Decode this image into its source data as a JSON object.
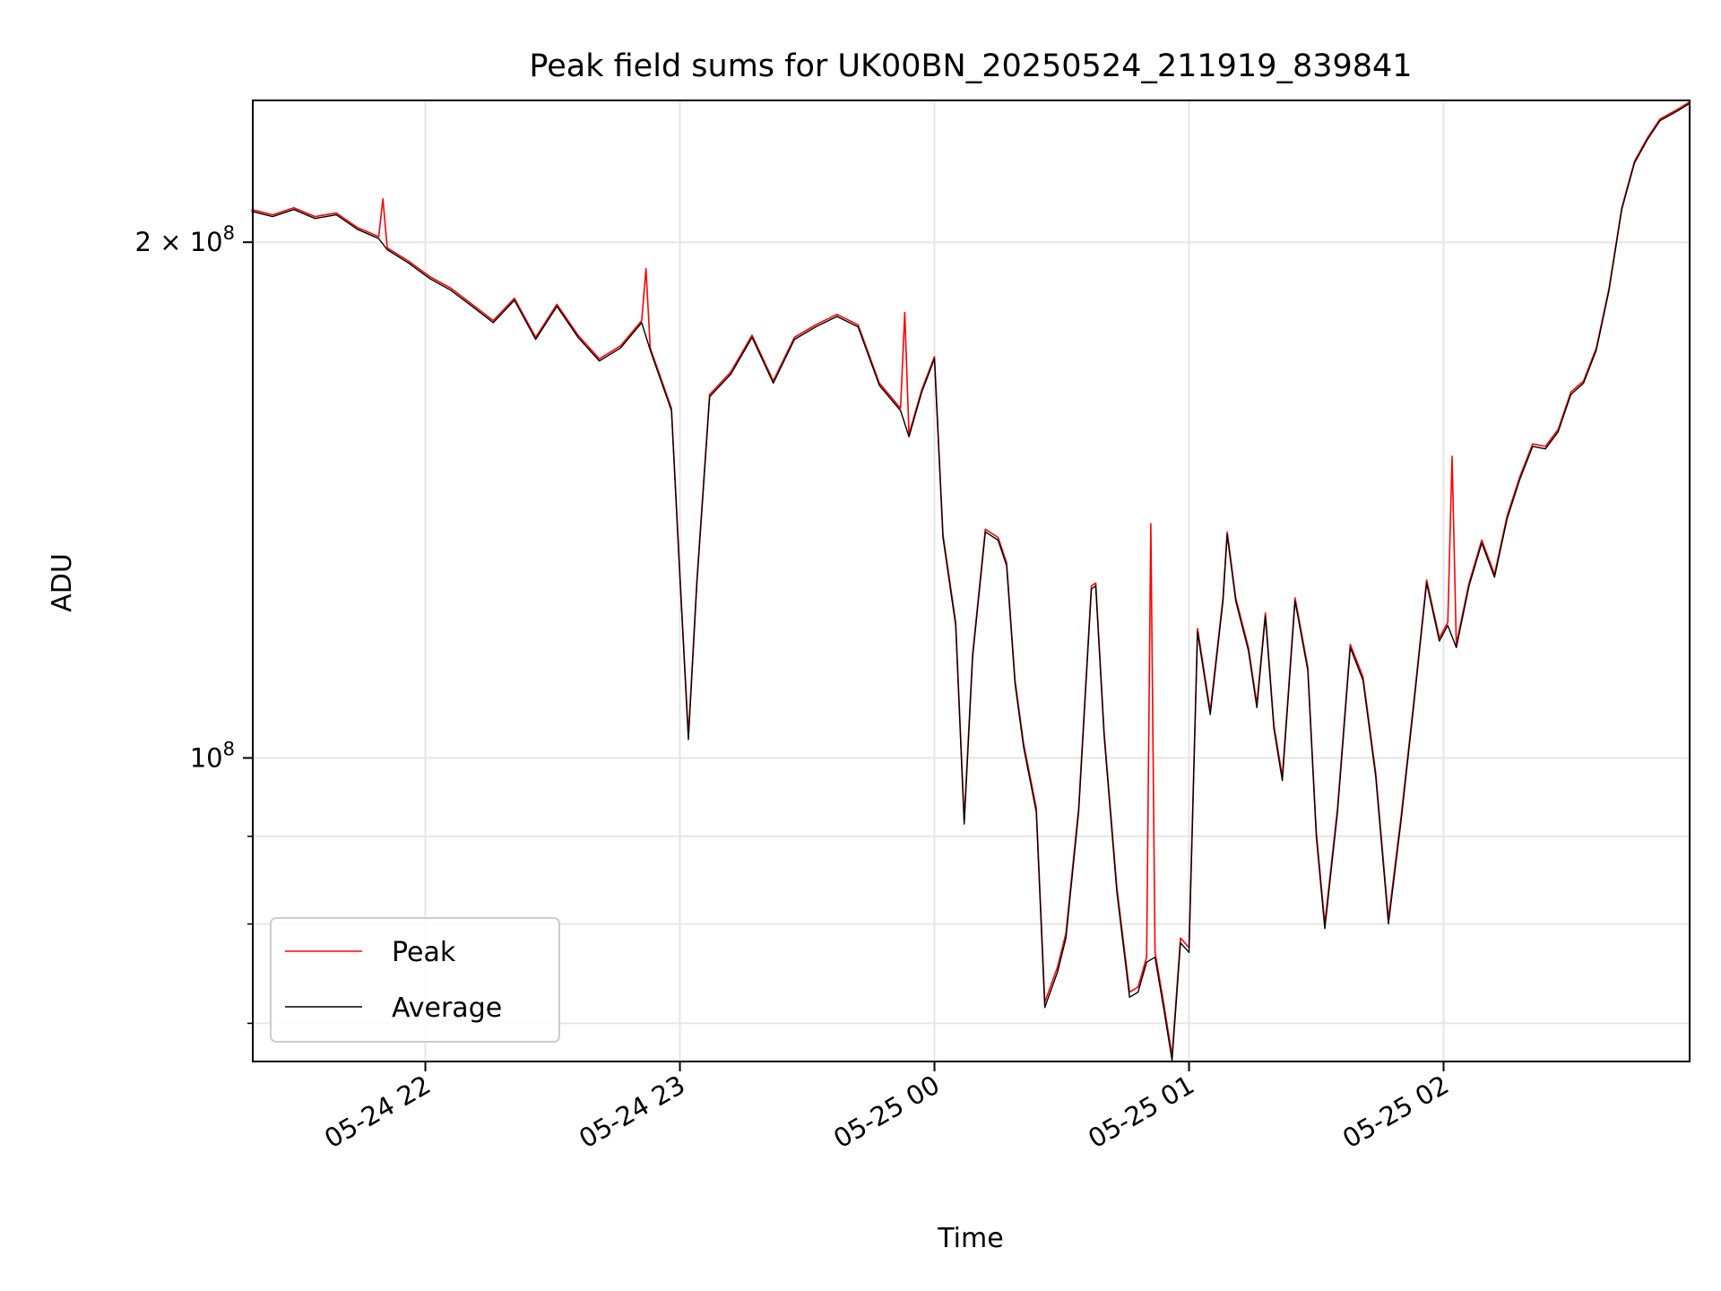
{
  "chart_data": {
    "type": "line",
    "title": "Peak field sums for UK00BN_20250524_211919_839841",
    "xlabel": "Time",
    "ylabel": "ADU",
    "x_range": [
      "2025-05-24T21:19:19",
      "2025-05-25T02:58:00"
    ],
    "x_ticks": [
      {
        "value": "2025-05-24T22:00",
        "label": "05-24 22"
      },
      {
        "value": "2025-05-24T23:00",
        "label": "05-24 23"
      },
      {
        "value": "2025-05-25T00:00",
        "label": "05-25 00"
      },
      {
        "value": "2025-05-25T01:00",
        "label": "05-25 01"
      },
      {
        "value": "2025-05-25T02:00",
        "label": "05-25 02"
      }
    ],
    "y_scale": "log",
    "ylim": [
      66500000,
      242000000
    ],
    "y_ticks": [
      {
        "value": 100000000,
        "label_base": "10",
        "label_exp": "8",
        "label_mult": ""
      },
      {
        "value": 200000000,
        "label_base": "10",
        "label_exp": "8",
        "label_mult": "2 × "
      }
    ],
    "y_minor_ticks": [
      70000000,
      80000000,
      90000000
    ],
    "grid": true,
    "legend_position": "lower-left",
    "series": [
      {
        "name": "Peak",
        "color": "#ff0000",
        "points": [
          [
            "2025-05-24T21:19",
            209000000
          ],
          [
            "2025-05-24T21:24",
            207500000
          ],
          [
            "2025-05-24T21:29",
            209500000
          ],
          [
            "2025-05-24T21:34",
            207000000
          ],
          [
            "2025-05-24T21:39",
            208000000
          ],
          [
            "2025-05-24T21:44",
            204000000
          ],
          [
            "2025-05-24T21:49",
            201500000
          ],
          [
            "2025-05-24T21:50",
            212000000
          ],
          [
            "2025-05-24T21:51",
            198500000
          ],
          [
            "2025-05-24T21:56",
            195000000
          ],
          [
            "2025-05-24T22:01",
            191000000
          ],
          [
            "2025-05-24T22:06",
            188000000
          ],
          [
            "2025-05-24T22:11",
            184000000
          ],
          [
            "2025-05-24T22:16",
            180000000
          ],
          [
            "2025-05-24T22:21",
            185500000
          ],
          [
            "2025-05-24T22:26",
            176000000
          ],
          [
            "2025-05-24T22:31",
            184000000
          ],
          [
            "2025-05-24T22:36",
            176500000
          ],
          [
            "2025-05-24T22:41",
            171000000
          ],
          [
            "2025-05-24T22:46",
            174000000
          ],
          [
            "2025-05-24T22:51",
            180000000
          ],
          [
            "2025-05-24T22:52",
            193000000
          ],
          [
            "2025-05-24T22:53",
            173500000
          ],
          [
            "2025-05-24T22:58",
            160000000
          ],
          [
            "2025-05-24T23:00",
            128000000
          ],
          [
            "2025-05-24T23:02",
            103000000
          ],
          [
            "2025-05-24T23:04",
            127000000
          ],
          [
            "2025-05-24T23:07",
            163000000
          ],
          [
            "2025-05-24T23:12",
            168000000
          ],
          [
            "2025-05-24T23:17",
            176500000
          ],
          [
            "2025-05-24T23:22",
            166000000
          ],
          [
            "2025-05-24T23:27",
            176000000
          ],
          [
            "2025-05-24T23:32",
            179000000
          ],
          [
            "2025-05-24T23:37",
            181500000
          ],
          [
            "2025-05-24T23:42",
            179000000
          ],
          [
            "2025-05-24T23:47",
            165500000
          ],
          [
            "2025-05-24T23:52",
            160000000
          ],
          [
            "2025-05-24T23:53",
            182000000
          ],
          [
            "2025-05-24T23:54",
            154500000
          ],
          [
            "2025-05-24T23:57",
            164000000
          ],
          [
            "2025-05-25T00:00",
            171500000
          ],
          [
            "2025-05-25T00:02",
            135000000
          ],
          [
            "2025-05-25T00:05",
            120000000
          ],
          [
            "2025-05-25T00:07",
            92000000
          ],
          [
            "2025-05-25T00:09",
            115000000
          ],
          [
            "2025-05-25T00:12",
            136000000
          ],
          [
            "2025-05-25T00:15",
            134500000
          ],
          [
            "2025-05-25T00:17",
            130000000
          ],
          [
            "2025-05-25T00:19",
            111000000
          ],
          [
            "2025-05-25T00:21",
            102000000
          ],
          [
            "2025-05-25T00:24",
            93500000
          ],
          [
            "2025-05-25T00:26",
            72000000
          ],
          [
            "2025-05-25T00:29",
            75500000
          ],
          [
            "2025-05-25T00:31",
            79000000
          ],
          [
            "2025-05-25T00:34",
            93500000
          ],
          [
            "2025-05-25T00:37",
            126000000
          ],
          [
            "2025-05-25T00:38",
            126500000
          ],
          [
            "2025-05-25T00:40",
            103500000
          ],
          [
            "2025-05-25T00:43",
            84000000
          ],
          [
            "2025-05-25T00:46",
            73000000
          ],
          [
            "2025-05-25T00:48",
            73500000
          ],
          [
            "2025-05-25T00:50",
            76500000
          ],
          [
            "2025-05-25T00:51",
            137000000
          ],
          [
            "2025-05-25T00:52",
            77000000
          ],
          [
            "2025-05-25T00:54",
            72000000
          ],
          [
            "2025-05-25T00:56",
            67000000
          ],
          [
            "2025-05-25T00:58",
            78500000
          ],
          [
            "2025-05-25T01:00",
            77500000
          ],
          [
            "2025-05-25T01:02",
            119000000
          ],
          [
            "2025-05-25T01:05",
            106500000
          ],
          [
            "2025-05-25T01:08",
            124000000
          ],
          [
            "2025-05-25T01:09",
            135500000
          ],
          [
            "2025-05-25T01:11",
            124000000
          ],
          [
            "2025-05-25T01:14",
            116000000
          ],
          [
            "2025-05-25T01:16",
            107500000
          ],
          [
            "2025-05-25T01:18",
            121500000
          ],
          [
            "2025-05-25T01:20",
            104500000
          ],
          [
            "2025-05-25T01:22",
            97500000
          ],
          [
            "2025-05-25T01:25",
            124000000
          ],
          [
            "2025-05-25T01:28",
            113000000
          ],
          [
            "2025-05-25T01:30",
            90500000
          ],
          [
            "2025-05-25T01:32",
            80000000
          ],
          [
            "2025-05-25T01:35",
            93500000
          ],
          [
            "2025-05-25T01:38",
            116500000
          ],
          [
            "2025-05-25T01:41",
            111500000
          ],
          [
            "2025-05-25T01:44",
            98000000
          ],
          [
            "2025-05-25T01:47",
            80500000
          ],
          [
            "2025-05-25T01:50",
            92500000
          ],
          [
            "2025-05-25T01:53",
            108000000
          ],
          [
            "2025-05-25T01:56",
            127000000
          ],
          [
            "2025-05-25T01:59",
            117500000
          ],
          [
            "2025-05-25T02:01",
            120000000
          ],
          [
            "2025-05-25T02:02",
            150000000
          ],
          [
            "2025-05-25T02:03",
            116500000
          ],
          [
            "2025-05-25T02:06",
            126500000
          ],
          [
            "2025-05-25T02:09",
            134000000
          ],
          [
            "2025-05-25T02:12",
            128000000
          ],
          [
            "2025-05-25T02:15",
            138500000
          ],
          [
            "2025-05-25T02:18",
            146000000
          ],
          [
            "2025-05-25T02:21",
            152500000
          ],
          [
            "2025-05-25T02:24",
            152000000
          ],
          [
            "2025-05-25T02:27",
            155500000
          ],
          [
            "2025-05-25T02:30",
            163500000
          ],
          [
            "2025-05-25T02:33",
            166000000
          ],
          [
            "2025-05-25T02:36",
            173500000
          ],
          [
            "2025-05-25T02:39",
            188000000
          ],
          [
            "2025-05-25T02:42",
            209500000
          ],
          [
            "2025-05-25T02:45",
            223000000
          ],
          [
            "2025-05-25T02:48",
            230000000
          ],
          [
            "2025-05-25T02:51",
            236000000
          ],
          [
            "2025-05-25T02:55",
            239000000
          ],
          [
            "2025-05-25T02:58",
            241500000
          ]
        ]
      },
      {
        "name": "Average",
        "color": "#000000",
        "points": [
          [
            "2025-05-24T21:19",
            208500000
          ],
          [
            "2025-05-24T21:24",
            207000000
          ],
          [
            "2025-05-24T21:29",
            209000000
          ],
          [
            "2025-05-24T21:34",
            206500000
          ],
          [
            "2025-05-24T21:39",
            207500000
          ],
          [
            "2025-05-24T21:44",
            203500000
          ],
          [
            "2025-05-24T21:49",
            201000000
          ],
          [
            "2025-05-24T21:51",
            198000000
          ],
          [
            "2025-05-24T21:56",
            194500000
          ],
          [
            "2025-05-24T22:01",
            190500000
          ],
          [
            "2025-05-24T22:06",
            187500000
          ],
          [
            "2025-05-24T22:11",
            183500000
          ],
          [
            "2025-05-24T22:16",
            179500000
          ],
          [
            "2025-05-24T22:21",
            185000000
          ],
          [
            "2025-05-24T22:26",
            175500000
          ],
          [
            "2025-05-24T22:31",
            183500000
          ],
          [
            "2025-05-24T22:36",
            176000000
          ],
          [
            "2025-05-24T22:41",
            170500000
          ],
          [
            "2025-05-24T22:46",
            173500000
          ],
          [
            "2025-05-24T22:51",
            179500000
          ],
          [
            "2025-05-24T22:53",
            173000000
          ],
          [
            "2025-05-24T22:58",
            159500000
          ],
          [
            "2025-05-24T23:00",
            127500000
          ],
          [
            "2025-05-24T23:02",
            102500000
          ],
          [
            "2025-05-24T23:04",
            126500000
          ],
          [
            "2025-05-24T23:07",
            162500000
          ],
          [
            "2025-05-24T23:12",
            167500000
          ],
          [
            "2025-05-24T23:17",
            176000000
          ],
          [
            "2025-05-24T23:22",
            165500000
          ],
          [
            "2025-05-24T23:27",
            175500000
          ],
          [
            "2025-05-24T23:32",
            178500000
          ],
          [
            "2025-05-24T23:37",
            181000000
          ],
          [
            "2025-05-24T23:42",
            178500000
          ],
          [
            "2025-05-24T23:47",
            165000000
          ],
          [
            "2025-05-24T23:52",
            159500000
          ],
          [
            "2025-05-24T23:54",
            154000000
          ],
          [
            "2025-05-24T23:57",
            163500000
          ],
          [
            "2025-05-25T00:00",
            171000000
          ],
          [
            "2025-05-25T00:02",
            134500000
          ],
          [
            "2025-05-25T00:05",
            119500000
          ],
          [
            "2025-05-25T00:07",
            91500000
          ],
          [
            "2025-05-25T00:09",
            114500000
          ],
          [
            "2025-05-25T00:12",
            135500000
          ],
          [
            "2025-05-25T00:15",
            134000000
          ],
          [
            "2025-05-25T00:17",
            129500000
          ],
          [
            "2025-05-25T00:19",
            110500000
          ],
          [
            "2025-05-25T00:21",
            101500000
          ],
          [
            "2025-05-25T00:24",
            93000000
          ],
          [
            "2025-05-25T00:26",
            71500000
          ],
          [
            "2025-05-25T00:29",
            75000000
          ],
          [
            "2025-05-25T00:31",
            78500000
          ],
          [
            "2025-05-25T00:34",
            93000000
          ],
          [
            "2025-05-25T00:37",
            125500000
          ],
          [
            "2025-05-25T00:38",
            126000000
          ],
          [
            "2025-05-25T00:40",
            103000000
          ],
          [
            "2025-05-25T00:43",
            83500000
          ],
          [
            "2025-05-25T00:46",
            72500000
          ],
          [
            "2025-05-25T00:48",
            73000000
          ],
          [
            "2025-05-25T00:50",
            76000000
          ],
          [
            "2025-05-25T00:52",
            76500000
          ],
          [
            "2025-05-25T00:54",
            71500000
          ],
          [
            "2025-05-25T00:56",
            66600000
          ],
          [
            "2025-05-25T00:58",
            78000000
          ],
          [
            "2025-05-25T01:00",
            77000000
          ],
          [
            "2025-05-25T01:02",
            118500000
          ],
          [
            "2025-05-25T01:05",
            106000000
          ],
          [
            "2025-05-25T01:08",
            123500000
          ],
          [
            "2025-05-25T01:09",
            135000000
          ],
          [
            "2025-05-25T01:11",
            123500000
          ],
          [
            "2025-05-25T01:14",
            115500000
          ],
          [
            "2025-05-25T01:16",
            107000000
          ],
          [
            "2025-05-25T01:18",
            121000000
          ],
          [
            "2025-05-25T01:20",
            104000000
          ],
          [
            "2025-05-25T01:22",
            97000000
          ],
          [
            "2025-05-25T01:25",
            123500000
          ],
          [
            "2025-05-25T01:28",
            112500000
          ],
          [
            "2025-05-25T01:30",
            90000000
          ],
          [
            "2025-05-25T01:32",
            79500000
          ],
          [
            "2025-05-25T01:35",
            93000000
          ],
          [
            "2025-05-25T01:38",
            116000000
          ],
          [
            "2025-05-25T01:41",
            111000000
          ],
          [
            "2025-05-25T01:44",
            97500000
          ],
          [
            "2025-05-25T01:47",
            80000000
          ],
          [
            "2025-05-25T01:50",
            92000000
          ],
          [
            "2025-05-25T01:53",
            107500000
          ],
          [
            "2025-05-25T01:56",
            126500000
          ],
          [
            "2025-05-25T01:59",
            117000000
          ],
          [
            "2025-05-25T02:01",
            119500000
          ],
          [
            "2025-05-25T02:03",
            116000000
          ],
          [
            "2025-05-25T02:06",
            126000000
          ],
          [
            "2025-05-25T02:09",
            133500000
          ],
          [
            "2025-05-25T02:12",
            127500000
          ],
          [
            "2025-05-25T02:15",
            138000000
          ],
          [
            "2025-05-25T02:18",
            145500000
          ],
          [
            "2025-05-25T02:21",
            152000000
          ],
          [
            "2025-05-25T02:24",
            151500000
          ],
          [
            "2025-05-25T02:27",
            155000000
          ],
          [
            "2025-05-25T02:30",
            163000000
          ],
          [
            "2025-05-25T02:33",
            165500000
          ],
          [
            "2025-05-25T02:36",
            173000000
          ],
          [
            "2025-05-25T02:39",
            187500000
          ],
          [
            "2025-05-25T02:42",
            209000000
          ],
          [
            "2025-05-25T02:45",
            222500000
          ],
          [
            "2025-05-25T02:48",
            229500000
          ],
          [
            "2025-05-25T02:51",
            235500000
          ],
          [
            "2025-05-25T02:55",
            238500000
          ],
          [
            "2025-05-25T02:58",
            241000000
          ]
        ]
      }
    ]
  }
}
